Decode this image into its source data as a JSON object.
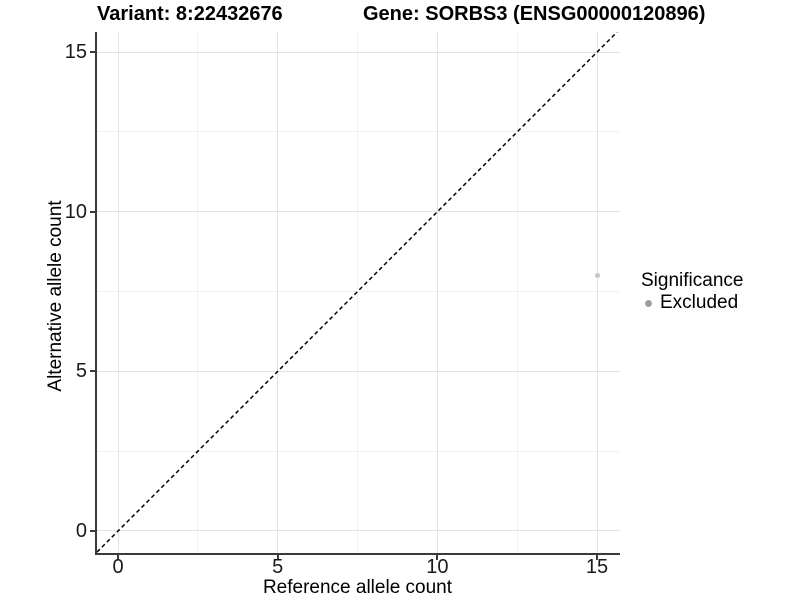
{
  "header": {
    "variant_title": "Variant: 8:22432676",
    "gene_title": "Gene: SORBS3 (ENSG00000120896)"
  },
  "chart_data": {
    "type": "scatter",
    "title": "Variant: 8:22432676 — Gene: SORBS3 (ENSG00000120896)",
    "xlabel": "Reference allele count",
    "ylabel": "Alternative allele count",
    "xlim": [
      -0.66,
      15.72
    ],
    "ylim": [
      -0.69,
      15.63
    ],
    "xticks": [
      0,
      5,
      10,
      15
    ],
    "yticks": [
      0,
      5,
      10,
      15
    ],
    "x_minor_ticks": [
      2.5,
      7.5,
      12.5
    ],
    "y_minor_ticks": [
      2.5,
      7.5,
      12.5
    ],
    "grid": true,
    "points": [
      {
        "x": 15,
        "y": 8,
        "series": "Excluded",
        "color": "#c6c6c6",
        "diameter": 5
      }
    ],
    "reference_line": {
      "equation": "y = x",
      "style": "dashed",
      "color": "#000000"
    },
    "legend": {
      "title": "Significance",
      "position": "right",
      "items": [
        {
          "label": "Excluded",
          "color": "#9e9e9e"
        }
      ]
    }
  },
  "style": {
    "background": "#ffffff",
    "axis_color": "#3a3a3a",
    "grid_major_color": "#e3e3e3",
    "grid_minor_color": "#f0f0f0",
    "diagonal_color": "#000000"
  }
}
